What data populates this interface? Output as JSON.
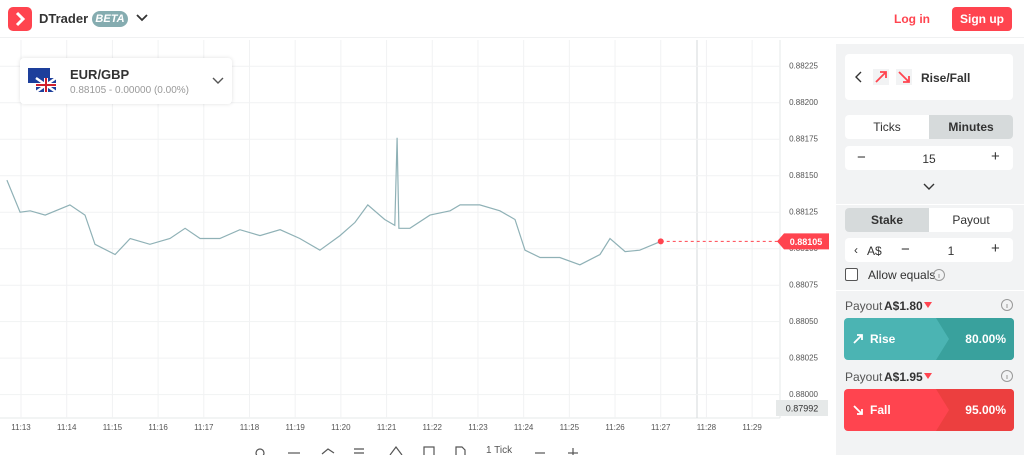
{
  "header": {
    "brand": "DTrader",
    "badge": "BETA",
    "login": "Log in",
    "signup": "Sign up"
  },
  "symbol": {
    "name": "EUR/GBP",
    "quote": "0.88105 - 0.00000 (0.00%)"
  },
  "chart_data": {
    "type": "line",
    "x": [
      12.69,
      12.98,
      13.2,
      13.53,
      14.07,
      14.4,
      14.62,
      15.06,
      15.39,
      15.82,
      16.26,
      16.59,
      16.92,
      17.35,
      17.79,
      18.23,
      18.67,
      19.1,
      19.54,
      19.98,
      20.31,
      20.59,
      20.96,
      21.18,
      21.23,
      21.27,
      21.51,
      21.95,
      22.39,
      22.61,
      23.04,
      23.48,
      23.81,
      24.03,
      24.36,
      24.79,
      25.23,
      25.67,
      25.89,
      26.22,
      26.54,
      27.0
    ],
    "series": [
      {
        "color": "#8fb1b6",
        "values": [
          0.88147,
          0.88125,
          0.88126,
          0.88123,
          0.8813,
          0.88123,
          0.88103,
          0.88096,
          0.88107,
          0.88103,
          0.88107,
          0.88114,
          0.88107,
          0.88107,
          0.88113,
          0.88109,
          0.88113,
          0.88107,
          0.88099,
          0.88109,
          0.88118,
          0.8813,
          0.8812,
          0.88116,
          0.88176,
          0.88114,
          0.88114,
          0.88123,
          0.88126,
          0.8813,
          0.8813,
          0.88126,
          0.8812,
          0.88099,
          0.88094,
          0.88094,
          0.88089,
          0.88096,
          0.88107,
          0.88098,
          0.88099,
          0.88105
        ]
      }
    ],
    "xlim": [
      12.54,
      29.61
    ],
    "xticks": [
      {
        "value": 13,
        "label": "11:13"
      },
      {
        "value": 14,
        "label": "11:14"
      },
      {
        "value": 15,
        "label": "11:15"
      },
      {
        "value": 16,
        "label": "11:16"
      },
      {
        "value": 17,
        "label": "11:17"
      },
      {
        "value": 18,
        "label": "11:18"
      },
      {
        "value": 19,
        "label": "11:19"
      },
      {
        "value": 20,
        "label": "11:20"
      },
      {
        "value": 21,
        "label": "11:21"
      },
      {
        "value": 22,
        "label": "11:22"
      },
      {
        "value": 23,
        "label": "11:23"
      },
      {
        "value": 24,
        "label": "11:24"
      },
      {
        "value": 25,
        "label": "11:25"
      },
      {
        "value": 26,
        "label": "11:26"
      },
      {
        "value": 27,
        "label": "11:27"
      },
      {
        "value": 28,
        "label": "11:28"
      },
      {
        "value": 29,
        "label": "11:29"
      }
    ],
    "ylim": [
      0.87984,
      0.88243
    ],
    "yticks": [
      0.88225,
      {
        "value": 0.882,
        "label": "0.88200"
      },
      0.88175,
      {
        "value": 0.8815,
        "label": "0.88150"
      },
      0.88125,
      {
        "value": 0.881,
        "label": "0.88100"
      },
      0.88075,
      {
        "value": 0.8805,
        "label": "0.88050"
      },
      0.88025,
      {
        "value": 0.88,
        "label": "0.88000"
      }
    ],
    "grid": true,
    "current_label": "0.88105",
    "low_label": "0.87992"
  },
  "toolbar": {
    "interval": "1 Tick"
  },
  "trade_type": "Rise/Fall",
  "duration": {
    "tabs": [
      "Ticks",
      "Minutes"
    ],
    "value": "15"
  },
  "amount": {
    "tabs": [
      "Stake",
      "Payout"
    ],
    "currency": "A$",
    "value": "1",
    "allow_equals": "Allow equals"
  },
  "purchase": [
    {
      "payout_label": "Payout",
      "payout": "A$1.80",
      "name": "Rise",
      "percent": "80.00%"
    },
    {
      "payout_label": "Payout",
      "payout": "A$1.95",
      "name": "Fall",
      "percent": "95.00%"
    }
  ]
}
